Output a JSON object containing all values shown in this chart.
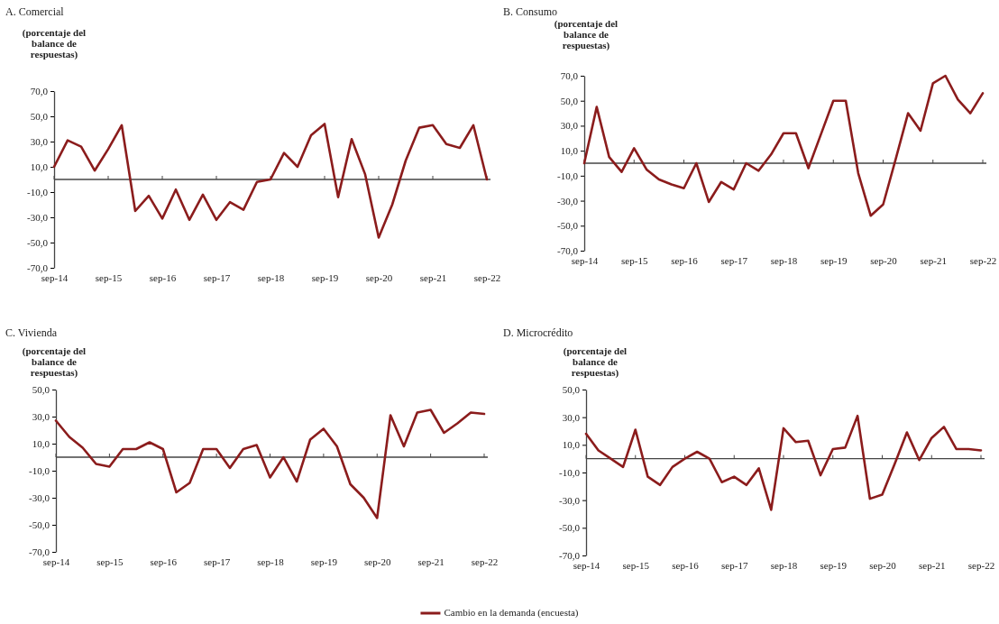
{
  "chart_data": [
    {
      "type": "line",
      "title": "A. Comercial",
      "ylabel": "(porcentaje del balance de respuestas)",
      "categories": [
        "sep-14",
        null,
        null,
        null,
        "sep-15",
        null,
        null,
        null,
        "sep-16",
        null,
        null,
        null,
        "sep-17",
        null,
        null,
        null,
        "sep-18",
        null,
        null,
        null,
        "sep-19",
        null,
        null,
        null,
        "sep-20",
        null,
        null,
        null,
        "sep-21",
        null,
        null,
        null,
        "sep-22"
      ],
      "series": [
        {
          "color": "#8b1c1c",
          "values": [
            10,
            31,
            26,
            7,
            24,
            43,
            -25,
            -13,
            -31,
            -8,
            -32,
            -12,
            -32,
            -18,
            -24,
            -2,
            0,
            21,
            10,
            35,
            44,
            -14,
            32,
            4,
            -46,
            -20,
            15,
            41,
            43,
            28,
            25,
            43,
            0
          ]
        }
      ],
      "ylim": [
        -70,
        70
      ],
      "yticks": [
        {
          "value": -70,
          "label": "-70,0"
        },
        {
          "value": -50,
          "label": "-50,0"
        },
        {
          "value": -30,
          "label": "-30,0"
        },
        {
          "value": -10,
          "label": "-10,0"
        },
        {
          "value": 10,
          "label": "10,0"
        },
        {
          "value": 30,
          "label": "30,0"
        },
        {
          "value": 50,
          "label": "50,0"
        },
        {
          "value": 70,
          "label": "70,0"
        }
      ],
      "grid": false,
      "legend": false
    },
    {
      "type": "line",
      "title": "B. Consumo",
      "ylabel": "(porcentaje del balance de respuestas)",
      "categories": [
        "sep-14",
        null,
        null,
        null,
        "sep-15",
        null,
        null,
        null,
        "sep-16",
        null,
        null,
        null,
        "sep-17",
        null,
        null,
        null,
        "sep-18",
        null,
        null,
        null,
        "sep-19",
        null,
        null,
        null,
        "sep-20",
        null,
        null,
        null,
        "sep-21",
        null,
        null,
        null,
        "sep-22"
      ],
      "series": [
        {
          "color": "#8b1c1c",
          "values": [
            0,
            45,
            5,
            -7,
            12,
            -5,
            -13,
            -17,
            -20,
            0,
            -31,
            -15,
            -21,
            0,
            -6,
            7,
            24,
            24,
            -4,
            23,
            50,
            50,
            -8,
            -42,
            -33,
            3,
            40,
            26,
            64,
            70,
            51,
            40,
            56
          ]
        }
      ],
      "ylim": [
        -70,
        70
      ],
      "yticks": [
        {
          "value": -70,
          "label": "-70,0"
        },
        {
          "value": -50,
          "label": "-50,0"
        },
        {
          "value": -30,
          "label": "-30,0"
        },
        {
          "value": -10,
          "label": "-10,0"
        },
        {
          "value": 10,
          "label": "10,0"
        },
        {
          "value": 30,
          "label": "30,0"
        },
        {
          "value": 50,
          "label": "50,0"
        },
        {
          "value": 70,
          "label": "70,0"
        }
      ],
      "grid": false,
      "legend": false
    },
    {
      "type": "line",
      "title": "C. Vivienda",
      "ylabel": "(porcentaje del balance de respuestas)",
      "categories": [
        "sep-14",
        null,
        null,
        null,
        "sep-15",
        null,
        null,
        null,
        "sep-16",
        null,
        null,
        null,
        "sep-17",
        null,
        null,
        null,
        "sep-18",
        null,
        null,
        null,
        "sep-19",
        null,
        null,
        null,
        "sep-20",
        null,
        null,
        null,
        "sep-21",
        null,
        null,
        null,
        "sep-22"
      ],
      "series": [
        {
          "color": "#8b1c1c",
          "values": [
            27,
            15,
            7,
            -5,
            -7,
            6,
            6,
            11,
            6,
            -26,
            -19,
            6,
            6,
            -8,
            6,
            9,
            -15,
            0,
            -18,
            13,
            21,
            8,
            -20,
            -30,
            -45,
            31,
            8,
            33,
            35,
            18,
            25,
            33,
            32
          ]
        }
      ],
      "ylim": [
        -70,
        50
      ],
      "yticks": [
        {
          "value": -70,
          "label": "-70,0"
        },
        {
          "value": -50,
          "label": "-50,0"
        },
        {
          "value": -30,
          "label": "-30,0"
        },
        {
          "value": -10,
          "label": "-10,0"
        },
        {
          "value": 10,
          "label": "10,0"
        },
        {
          "value": 30,
          "label": "30,0"
        },
        {
          "value": 50,
          "label": "50,0"
        }
      ],
      "grid": false,
      "legend": false
    },
    {
      "type": "line",
      "title": "D. Microcrédito",
      "ylabel": "(porcentaje del balance de respuestas)",
      "categories": [
        "sep-14",
        null,
        null,
        null,
        "sep-15",
        null,
        null,
        null,
        "sep-16",
        null,
        null,
        null,
        "sep-17",
        null,
        null,
        null,
        "sep-18",
        null,
        null,
        null,
        "sep-19",
        null,
        null,
        null,
        "sep-20",
        null,
        null,
        null,
        "sep-21",
        null,
        null,
        null,
        "sep-22"
      ],
      "series": [
        {
          "name": "Cambio en la demanda (encuesta)",
          "color": "#8b1c1c",
          "values": [
            18,
            6,
            0,
            -6,
            21,
            -13,
            -19,
            -6,
            0,
            5,
            0,
            -17,
            -13,
            -19,
            -7,
            -37,
            22,
            12,
            13,
            -12,
            7,
            8,
            31,
            -29,
            -26,
            -4,
            19,
            -1,
            15,
            23,
            7,
            7,
            6
          ]
        }
      ],
      "ylim": [
        -70,
        50
      ],
      "yticks": [
        {
          "value": -70,
          "label": "-70,0"
        },
        {
          "value": -50,
          "label": "-50,0"
        },
        {
          "value": -30,
          "label": "-30,0"
        },
        {
          "value": -10,
          "label": "-10,0"
        },
        {
          "value": 10,
          "label": "10,0"
        },
        {
          "value": 30,
          "label": "30,0"
        },
        {
          "value": 50,
          "label": "50,0"
        }
      ],
      "grid": false,
      "legend": "bottom"
    }
  ]
}
